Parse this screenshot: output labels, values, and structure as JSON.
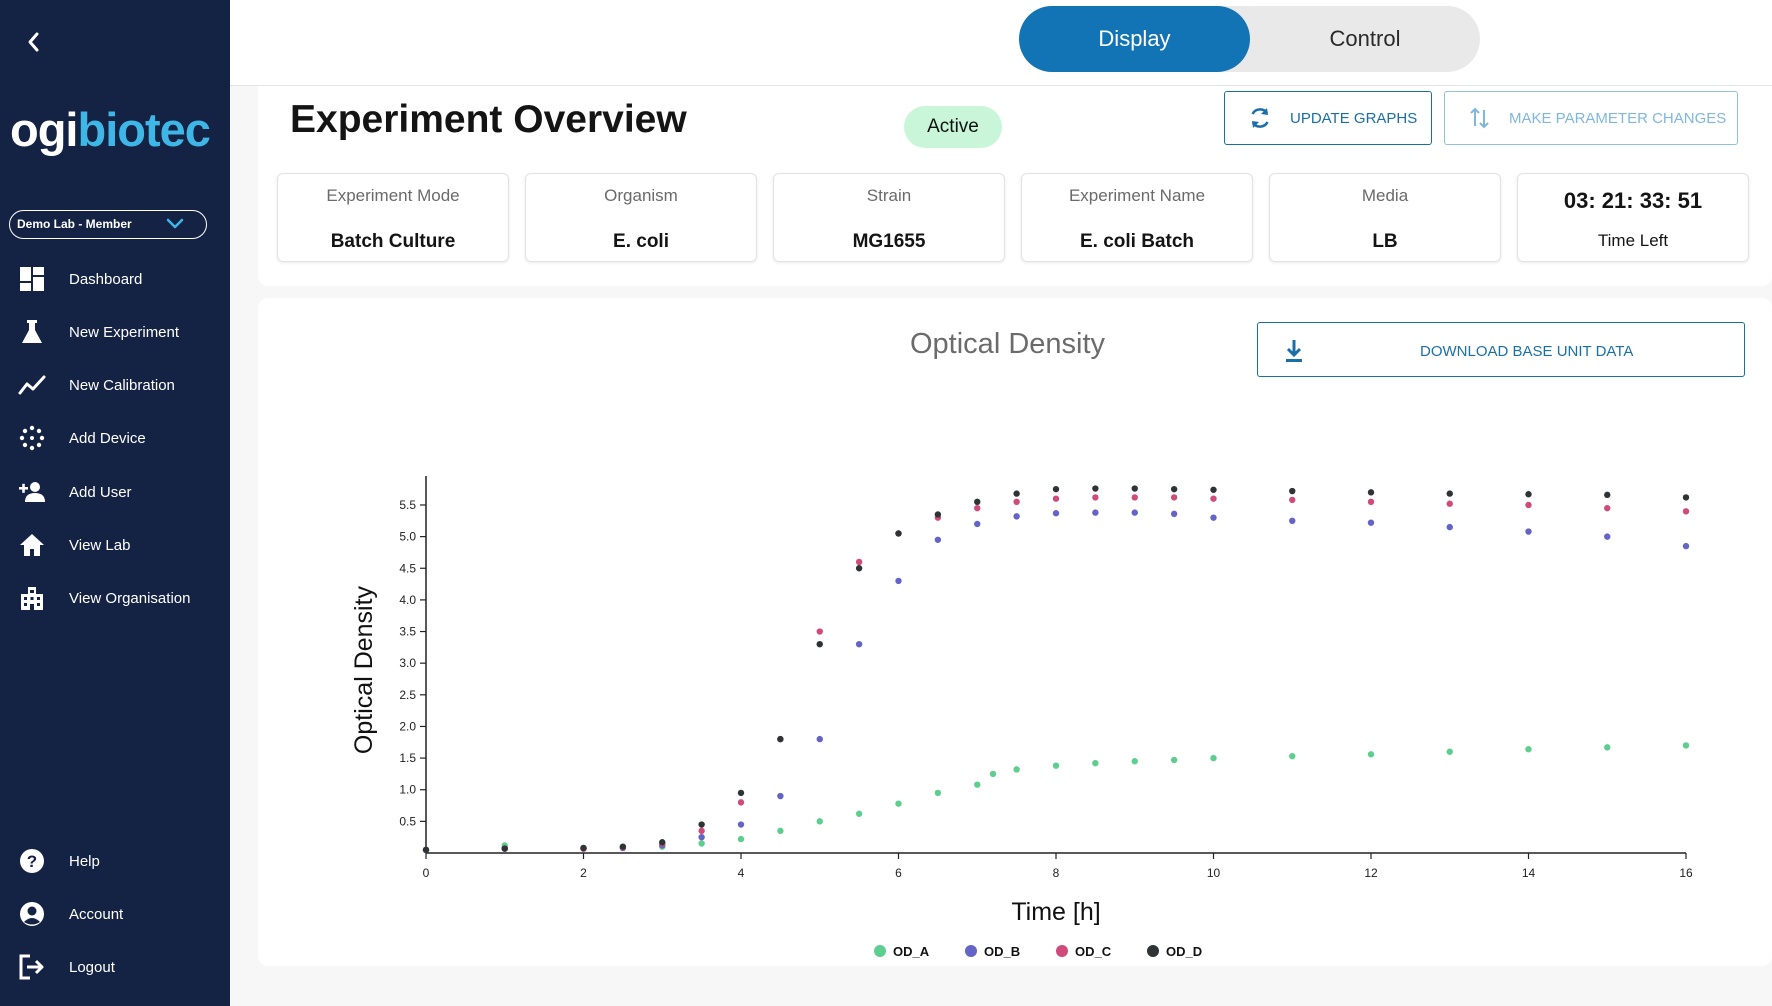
{
  "brand": {
    "part1": "ogi",
    "part2": "biotec",
    "accent": "#3fb7e6"
  },
  "sidebar": {
    "lab_selector": "Demo Lab - Member",
    "items": [
      {
        "label": "Dashboard",
        "icon": "dashboard-icon"
      },
      {
        "label": "New Experiment",
        "icon": "flask-icon"
      },
      {
        "label": "New Calibration",
        "icon": "trend-icon"
      },
      {
        "label": "Add Device",
        "icon": "device-icon"
      },
      {
        "label": "Add User",
        "icon": "add-user-icon"
      },
      {
        "label": "View Lab",
        "icon": "home-icon"
      },
      {
        "label": "View Organisation",
        "icon": "building-icon"
      }
    ],
    "bottom_items": [
      {
        "label": "Help",
        "icon": "help-icon"
      },
      {
        "label": "Account",
        "icon": "account-icon"
      },
      {
        "label": "Logout",
        "icon": "logout-icon"
      }
    ]
  },
  "toggle": {
    "display": "Display",
    "control": "Control",
    "active": "Display"
  },
  "overview": {
    "title": "Experiment Overview",
    "status": "Active",
    "update_graphs": "UPDATE GRAPHS",
    "make_parameter_changes": "MAKE PARAMETER CHANGES",
    "cards": [
      {
        "label": "Experiment Mode",
        "value": "Batch Culture"
      },
      {
        "label": "Organism",
        "value": "E. coli"
      },
      {
        "label": "Strain",
        "value": "MG1655"
      },
      {
        "label": "Experiment Name",
        "value": "E. coli Batch"
      },
      {
        "label": "Media",
        "value": "LB"
      }
    ],
    "timer": {
      "value": "03: 21: 33: 51",
      "label": "Time Left"
    }
  },
  "graph": {
    "title": "Optical Density",
    "download_label": "DOWNLOAD BASE UNIT DATA"
  },
  "chart_data": {
    "type": "scatter",
    "title": "Optical Density",
    "xlabel": "Time [h]",
    "ylabel": "Optical Density",
    "xlim": [
      0,
      16
    ],
    "ylim": [
      0,
      5.8
    ],
    "xticks": [
      0,
      2,
      4,
      6,
      8,
      10,
      12,
      14,
      16
    ],
    "yticks": [
      0.5,
      1.0,
      1.5,
      2.0,
      2.5,
      3.0,
      3.5,
      4.0,
      4.5,
      5.0,
      5.5
    ],
    "grid": false,
    "legend_position": "bottom",
    "series": [
      {
        "name": "OD_A",
        "color": "#5ccf8f",
        "x": [
          0,
          1,
          2,
          2.5,
          3,
          3.5,
          4,
          4.5,
          5,
          5.5,
          6,
          6.5,
          7,
          7.2,
          7.5,
          8,
          8.5,
          9,
          9.5,
          10,
          11,
          12,
          13,
          14,
          15,
          16
        ],
        "y": [
          0.05,
          0.12,
          0.07,
          0.08,
          0.1,
          0.15,
          0.22,
          0.35,
          0.5,
          0.62,
          0.78,
          0.95,
          1.08,
          1.25,
          1.32,
          1.38,
          1.42,
          1.45,
          1.47,
          1.5,
          1.53,
          1.56,
          1.6,
          1.64,
          1.67,
          1.7
        ]
      },
      {
        "name": "OD_B",
        "color": "#6464c8",
        "x": [
          0,
          1,
          2,
          2.5,
          3,
          3.5,
          4,
          4.5,
          5,
          5.5,
          6,
          6.5,
          7,
          7.5,
          8,
          8.5,
          9,
          9.5,
          10,
          11,
          12,
          13,
          14,
          15,
          16
        ],
        "y": [
          0.05,
          0.07,
          0.07,
          0.08,
          0.12,
          0.25,
          0.45,
          0.9,
          1.8,
          3.3,
          4.3,
          4.95,
          5.2,
          5.32,
          5.37,
          5.38,
          5.38,
          5.36,
          5.3,
          5.25,
          5.22,
          5.15,
          5.08,
          5.0,
          4.85
        ]
      },
      {
        "name": "OD_C",
        "color": "#d04a7a",
        "x": [
          0,
          1,
          2,
          2.5,
          3,
          3.5,
          4,
          4.5,
          5,
          5.5,
          6,
          6.5,
          7,
          7.5,
          8,
          8.5,
          9,
          9.5,
          10,
          11,
          12,
          13,
          14,
          15,
          16
        ],
        "y": [
          0.05,
          0.07,
          0.07,
          0.09,
          0.15,
          0.35,
          0.8,
          1.8,
          3.5,
          4.6,
          5.05,
          5.3,
          5.45,
          5.55,
          5.6,
          5.62,
          5.62,
          5.62,
          5.6,
          5.58,
          5.55,
          5.52,
          5.5,
          5.45,
          5.4
        ]
      },
      {
        "name": "OD_D",
        "color": "#2e3436",
        "x": [
          0,
          1,
          2,
          2.5,
          3,
          3.5,
          4,
          4.5,
          5,
          5.5,
          6,
          6.5,
          7,
          7.5,
          8,
          8.5,
          9,
          9.5,
          10,
          11,
          12,
          13,
          14,
          15,
          16
        ],
        "y": [
          0.05,
          0.07,
          0.08,
          0.1,
          0.17,
          0.45,
          0.95,
          1.8,
          3.3,
          4.5,
          5.05,
          5.35,
          5.55,
          5.68,
          5.75,
          5.76,
          5.76,
          5.75,
          5.74,
          5.72,
          5.7,
          5.68,
          5.67,
          5.66,
          5.62
        ]
      }
    ]
  }
}
